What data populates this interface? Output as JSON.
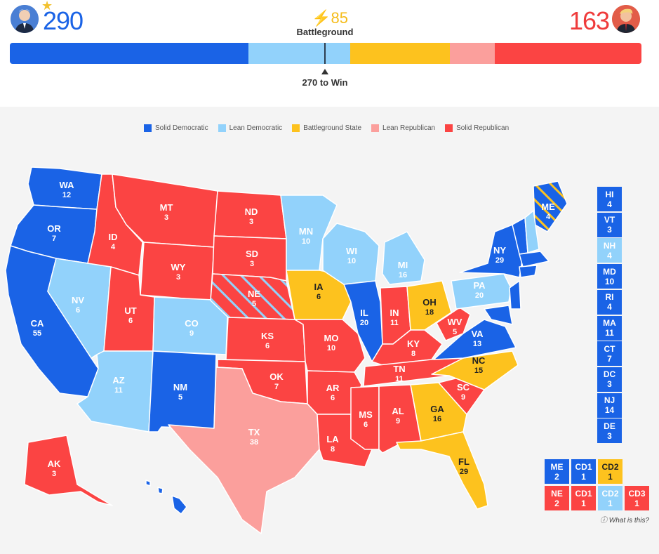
{
  "colors": {
    "solid_dem": "#1a63e6",
    "lean_dem": "#92d2fb",
    "battleground": "#fdc21e",
    "lean_rep": "#fb9f9c",
    "solid_rep": "#fb4443"
  },
  "header": {
    "dem_total": "290",
    "rep_total": "163",
    "battleground_total": "85",
    "battleground_label": "Battleground",
    "win_label": "270 to Win",
    "dem_icon": "candidate-photo-dem",
    "rep_icon": "candidate-photo-rep",
    "winner_icon": "star-icon",
    "bolt_icon": "lightning-icon"
  },
  "bar_segments": [
    {
      "category": "solid_dem",
      "votes": 203
    },
    {
      "category": "lean_dem",
      "votes": 87
    },
    {
      "category": "battleground",
      "votes": 85
    },
    {
      "category": "lean_rep",
      "votes": 38
    },
    {
      "category": "solid_rep",
      "votes": 125
    }
  ],
  "legend": [
    {
      "key": "solid_dem",
      "label": "Solid Democratic"
    },
    {
      "key": "lean_dem",
      "label": "Lean Democratic"
    },
    {
      "key": "battleground",
      "label": "Battleground State"
    },
    {
      "key": "lean_rep",
      "label": "Lean Republican"
    },
    {
      "key": "solid_rep",
      "label": "Solid Republican"
    }
  ],
  "states": [
    {
      "abbr": "WA",
      "ev": "12",
      "cat": "solid_dem"
    },
    {
      "abbr": "OR",
      "ev": "7",
      "cat": "solid_dem"
    },
    {
      "abbr": "CA",
      "ev": "55",
      "cat": "solid_dem"
    },
    {
      "abbr": "NV",
      "ev": "6",
      "cat": "lean_dem"
    },
    {
      "abbr": "ID",
      "ev": "4",
      "cat": "solid_rep"
    },
    {
      "abbr": "MT",
      "ev": "3",
      "cat": "solid_rep"
    },
    {
      "abbr": "WY",
      "ev": "3",
      "cat": "solid_rep"
    },
    {
      "abbr": "UT",
      "ev": "6",
      "cat": "solid_rep"
    },
    {
      "abbr": "AZ",
      "ev": "11",
      "cat": "lean_dem"
    },
    {
      "abbr": "CO",
      "ev": "9",
      "cat": "lean_dem"
    },
    {
      "abbr": "NM",
      "ev": "5",
      "cat": "solid_dem"
    },
    {
      "abbr": "ND",
      "ev": "3",
      "cat": "solid_rep"
    },
    {
      "abbr": "SD",
      "ev": "3",
      "cat": "solid_rep"
    },
    {
      "abbr": "NE",
      "ev": "5",
      "cat": "solid_rep"
    },
    {
      "abbr": "KS",
      "ev": "6",
      "cat": "solid_rep"
    },
    {
      "abbr": "OK",
      "ev": "7",
      "cat": "solid_rep"
    },
    {
      "abbr": "TX",
      "ev": "38",
      "cat": "lean_rep"
    },
    {
      "abbr": "MN",
      "ev": "10",
      "cat": "lean_dem"
    },
    {
      "abbr": "IA",
      "ev": "6",
      "cat": "battleground"
    },
    {
      "abbr": "MO",
      "ev": "10",
      "cat": "solid_rep"
    },
    {
      "abbr": "AR",
      "ev": "6",
      "cat": "solid_rep"
    },
    {
      "abbr": "LA",
      "ev": "8",
      "cat": "solid_rep"
    },
    {
      "abbr": "WI",
      "ev": "10",
      "cat": "lean_dem"
    },
    {
      "abbr": "IL",
      "ev": "20",
      "cat": "solid_dem"
    },
    {
      "abbr": "MI",
      "ev": "16",
      "cat": "lean_dem"
    },
    {
      "abbr": "IN",
      "ev": "11",
      "cat": "solid_rep"
    },
    {
      "abbr": "OH",
      "ev": "18",
      "cat": "battleground"
    },
    {
      "abbr": "KY",
      "ev": "8",
      "cat": "solid_rep"
    },
    {
      "abbr": "TN",
      "ev": "11",
      "cat": "solid_rep"
    },
    {
      "abbr": "MS",
      "ev": "6",
      "cat": "solid_rep"
    },
    {
      "abbr": "AL",
      "ev": "9",
      "cat": "solid_rep"
    },
    {
      "abbr": "GA",
      "ev": "16",
      "cat": "battleground"
    },
    {
      "abbr": "FL",
      "ev": "29",
      "cat": "battleground"
    },
    {
      "abbr": "SC",
      "ev": "9",
      "cat": "solid_rep"
    },
    {
      "abbr": "NC",
      "ev": "15",
      "cat": "battleground"
    },
    {
      "abbr": "VA",
      "ev": "13",
      "cat": "solid_dem"
    },
    {
      "abbr": "WV",
      "ev": "5",
      "cat": "solid_rep"
    },
    {
      "abbr": "PA",
      "ev": "20",
      "cat": "lean_dem"
    },
    {
      "abbr": "NY",
      "ev": "29",
      "cat": "solid_dem"
    },
    {
      "abbr": "ME",
      "ev": "4",
      "cat": "solid_dem"
    },
    {
      "abbr": "AK",
      "ev": "3",
      "cat": "solid_rep"
    },
    {
      "abbr": "HI",
      "ev": "",
      "cat": "solid_dem"
    }
  ],
  "side_tiles": [
    {
      "abbr": "HI",
      "ev": "4",
      "cat": "solid_dem"
    },
    {
      "abbr": "VT",
      "ev": "3",
      "cat": "solid_dem"
    },
    {
      "abbr": "NH",
      "ev": "4",
      "cat": "lean_dem"
    },
    {
      "abbr": "MD",
      "ev": "10",
      "cat": "solid_dem"
    },
    {
      "abbr": "RI",
      "ev": "4",
      "cat": "solid_dem"
    },
    {
      "abbr": "MA",
      "ev": "11",
      "cat": "solid_dem"
    },
    {
      "abbr": "CT",
      "ev": "7",
      "cat": "solid_dem"
    },
    {
      "abbr": "DC",
      "ev": "3",
      "cat": "solid_dem"
    },
    {
      "abbr": "NJ",
      "ev": "14",
      "cat": "solid_dem"
    },
    {
      "abbr": "DE",
      "ev": "3",
      "cat": "solid_dem"
    }
  ],
  "district_tiles": [
    {
      "abbr": "ME",
      "ev": "2",
      "cat": "solid_dem"
    },
    {
      "abbr": "CD1",
      "ev": "1",
      "cat": "solid_dem"
    },
    {
      "abbr": "CD2",
      "ev": "1",
      "cat": "battleground"
    },
    {
      "abbr": "NE",
      "ev": "2",
      "cat": "solid_rep"
    },
    {
      "abbr": "CD1",
      "ev": "1",
      "cat": "solid_rep"
    },
    {
      "abbr": "CD2",
      "ev": "1",
      "cat": "lean_dem"
    },
    {
      "abbr": "CD3",
      "ev": "1",
      "cat": "solid_rep"
    }
  ],
  "footer": {
    "what_is_this": "What is this?",
    "info_icon": "info-icon"
  }
}
